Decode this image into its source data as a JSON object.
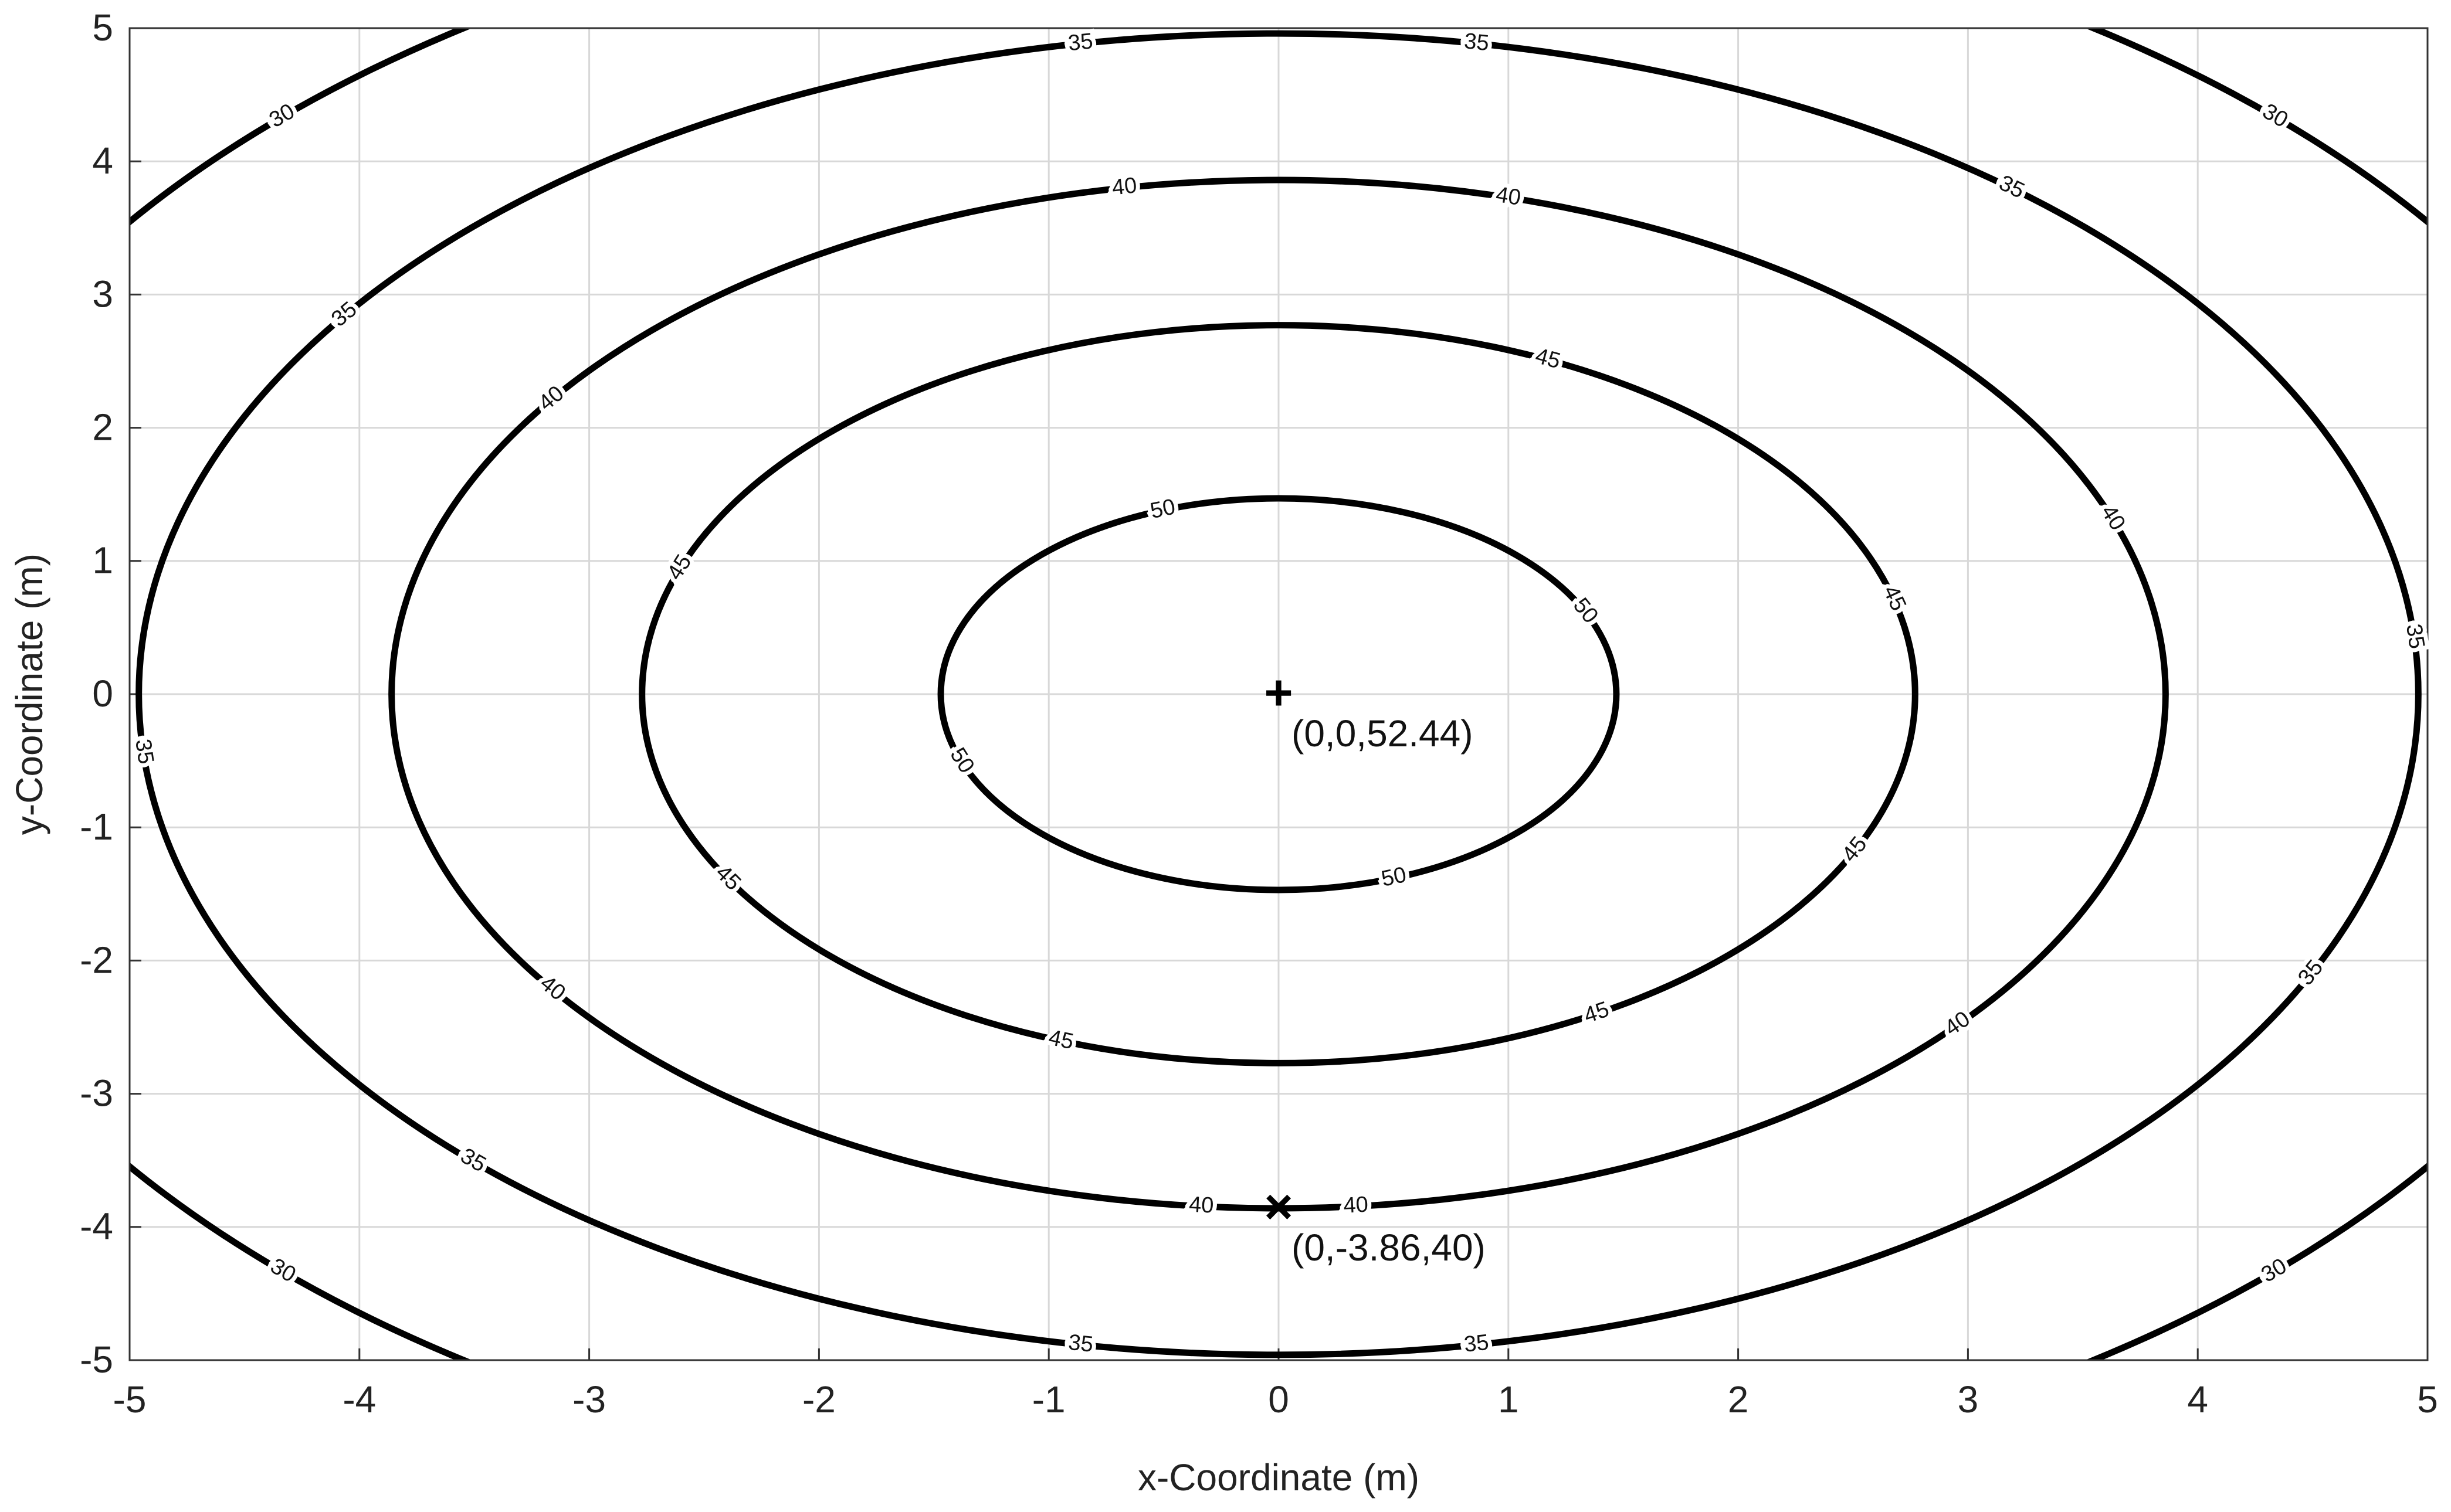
{
  "chart_data": {
    "type": "contour",
    "xlabel": "x-Coordinate (m)",
    "ylabel": "y-Coordinate (m)",
    "xlim": [
      -5,
      5
    ],
    "ylim": [
      -5,
      5
    ],
    "xticks": [
      -5,
      -4,
      -3,
      -2,
      -1,
      0,
      1,
      2,
      3,
      4,
      5
    ],
    "yticks": [
      -5,
      -4,
      -3,
      -2,
      -1,
      0,
      1,
      2,
      3,
      4,
      5
    ],
    "grid": true,
    "color": "#000000",
    "contours": [
      {
        "level": 50,
        "radius": 1.47
      },
      {
        "level": 45,
        "radius": 2.77
      },
      {
        "level": 40,
        "radius": 3.86
      },
      {
        "level": 35,
        "radius": 4.96
      },
      {
        "level": 30,
        "radius": 6.13
      }
    ],
    "points": [
      {
        "x": 0,
        "y": 0,
        "marker": "+",
        "label": "(0,0,52.44)"
      },
      {
        "x": 0,
        "y": -3.86,
        "marker": "×",
        "label": "(0,-3.86,40)"
      }
    ]
  }
}
